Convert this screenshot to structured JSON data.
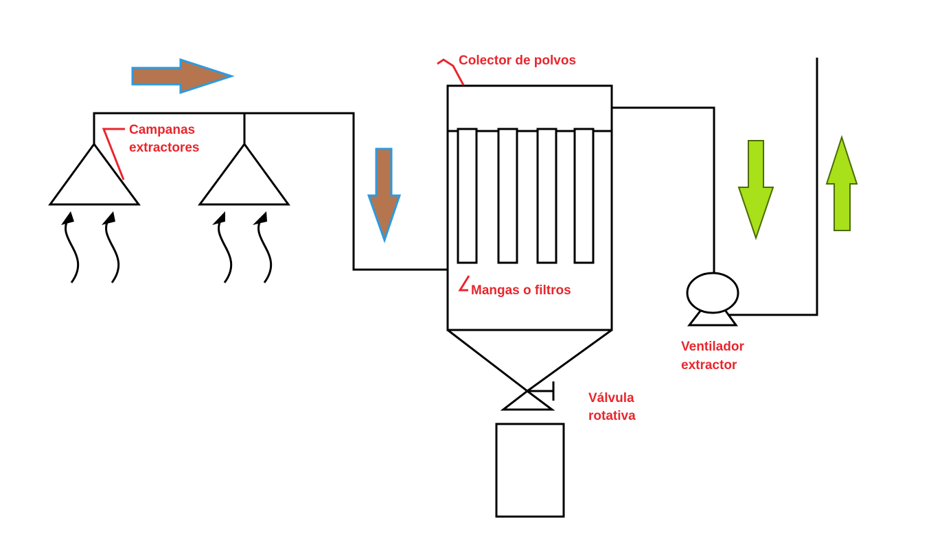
{
  "labels": {
    "collector": "Colector de polvos",
    "hoods_line1": "Campanas",
    "hoods_line2": "extractores",
    "filters": "Mangas o filtros",
    "fan_line1": "Ventilador",
    "fan_line2": "extractor",
    "valve_line1": "Válvula",
    "valve_line2": "rotativa"
  },
  "colors": {
    "label_text": "#e8262d",
    "dusty_air_arrow": "#b5754f",
    "dusty_air_arrow_outline": "#2b9be0",
    "clean_air_arrow": "#a8e01a",
    "clean_air_arrow_outline": "#4a6b00",
    "lines": "#000000"
  },
  "icons": {
    "dusty_flow": "arrow-right-brown-icon",
    "dusty_flow_down": "arrow-down-brown-icon",
    "clean_flow_down": "arrow-down-green-icon",
    "clean_flow_up": "arrow-up-green-icon",
    "rising_dust": "rising-dust-arrow-icon"
  }
}
